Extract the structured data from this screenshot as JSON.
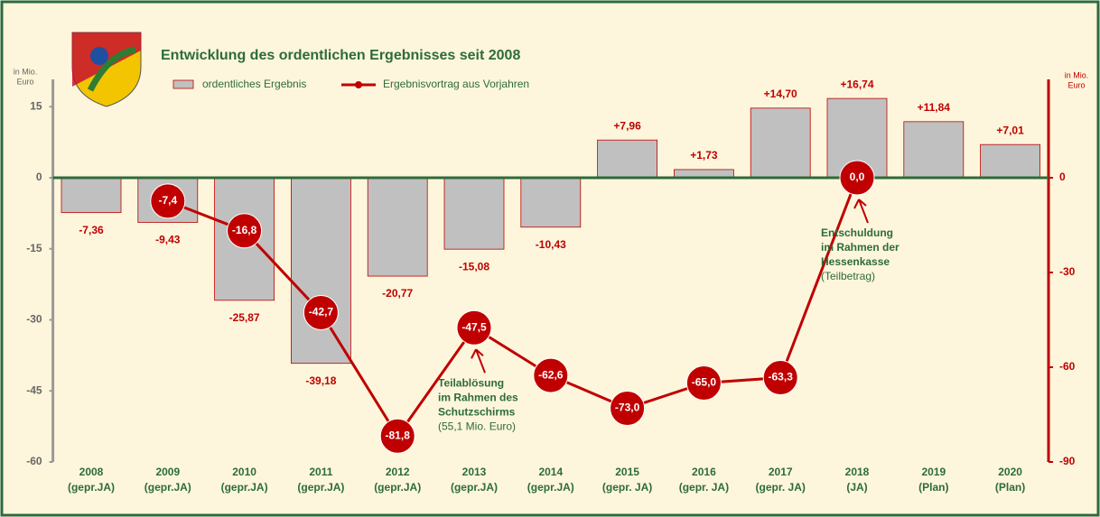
{
  "chart_data": {
    "type": "bar+line",
    "title": "Entwicklung des ordentlichen Ergebnisses seit 2008",
    "y_axis_label": [
      "in Mio.",
      "Euro"
    ],
    "y2_axis_label": [
      "in Mio.",
      "Euro"
    ],
    "categories": [
      [
        "2008",
        "(gepr.JA)"
      ],
      [
        "2009",
        "(gepr.JA)"
      ],
      [
        "2010",
        "(gepr.JA)"
      ],
      [
        "2011",
        "(gepr.JA)"
      ],
      [
        "2012",
        "(gepr.JA)"
      ],
      [
        "2013",
        "(gepr.JA)"
      ],
      [
        "2014",
        "(gepr.JA)"
      ],
      [
        "2015",
        "(gepr. JA)"
      ],
      [
        "2016",
        "(gepr. JA)"
      ],
      [
        "2017",
        "(gepr. JA)"
      ],
      [
        "2018",
        "(JA)"
      ],
      [
        "2019",
        "(Plan)"
      ],
      [
        "2020",
        "(Plan)"
      ]
    ],
    "series": [
      {
        "name": "ordentliches Ergebnis",
        "type": "bar",
        "color": "#c0c0c0",
        "edge_color": "#c00000",
        "values": [
          -7.36,
          -9.43,
          -25.87,
          -39.18,
          -20.77,
          -15.08,
          -10.43,
          7.96,
          1.73,
          14.7,
          16.74,
          11.84,
          7.01
        ],
        "value_labels": [
          "-7,36",
          "-9,43",
          "-25,87",
          "-39,18",
          "-20,77",
          "-15,08",
          "-10,43",
          "+7,96",
          "+1,73",
          "+14,70",
          "+16,74",
          "+11,84",
          "+7,01"
        ]
      },
      {
        "name": "Ergebnisvortrag aus Vorjahren",
        "type": "line",
        "axis": "y2",
        "color": "#c00000",
        "values": [
          null,
          -7.4,
          -16.8,
          -42.7,
          -81.8,
          -47.5,
          -62.6,
          -73.0,
          -65.0,
          -63.3,
          0.0,
          null,
          null
        ],
        "value_labels": [
          null,
          "-7,4",
          "-16,8",
          "-42,7",
          "-81,8",
          "-47,5",
          "-62,6",
          "-73,0",
          "-65,0",
          "-63,3",
          "0,0",
          null,
          null
        ]
      }
    ],
    "ylim": [
      -60,
      20
    ],
    "yticks": [
      -60,
      -45,
      -30,
      -15,
      0,
      15
    ],
    "y2lim": [
      -90,
      30
    ],
    "y2ticks": [
      -90,
      -60,
      -30,
      0
    ],
    "annotations": [
      {
        "lines": [
          "Teilablösung",
          "im Rahmen des",
          "Schutzschirms"
        ],
        "note": "(55,1 Mio. Euro)",
        "category": 5
      },
      {
        "lines": [
          "Entschuldung",
          "im Rahmen der",
          "Hessenkasse"
        ],
        "note": "(Teilbetrag)",
        "category": 10
      }
    ]
  }
}
